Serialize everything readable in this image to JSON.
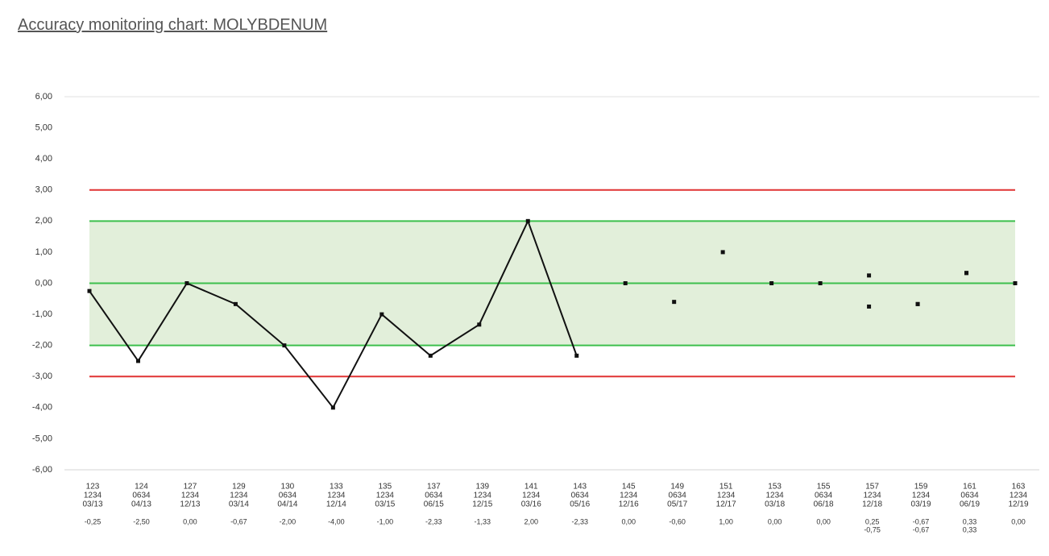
{
  "chart_data": {
    "type": "control",
    "title": "Accuracy monitoring chart: MOLYBDENUM",
    "categories": [
      [
        "123",
        "1234",
        "03/13"
      ],
      [
        "124",
        "0634",
        "04/13"
      ],
      [
        "127",
        "1234",
        "12/13"
      ],
      [
        "129",
        "1234",
        "03/14"
      ],
      [
        "130",
        "0634",
        "04/14"
      ],
      [
        "133",
        "1234",
        "12/14"
      ],
      [
        "135",
        "1234",
        "03/15"
      ],
      [
        "137",
        "0634",
        "06/15"
      ],
      [
        "139",
        "1234",
        "12/15"
      ],
      [
        "141",
        "1234",
        "03/16"
      ],
      [
        "143",
        "0634",
        "05/16"
      ],
      [
        "145",
        "1234",
        "12/16"
      ],
      [
        "149",
        "0634",
        "05/17"
      ],
      [
        "151",
        "1234",
        "12/17"
      ],
      [
        "153",
        "1234",
        "03/18"
      ],
      [
        "155",
        "0634",
        "06/18"
      ],
      [
        "157",
        "1234",
        "12/18"
      ],
      [
        "159",
        "1234",
        "03/19"
      ],
      [
        "161",
        "0634",
        "06/19"
      ],
      [
        "163",
        "1234",
        "12/19"
      ]
    ],
    "series": [
      {
        "style": "line",
        "color": "#111111",
        "values": [
          -0.25,
          -2.5,
          0,
          -0.67,
          -2,
          -4,
          -1,
          -2.33,
          -1.33,
          2,
          -2.33,
          null,
          null,
          null,
          null,
          null,
          null,
          null,
          null,
          null
        ],
        "value_labels": [
          "-0,25",
          "-2,50",
          "0,00",
          "-0,67",
          "-2,00",
          "-4,00",
          "-1,00",
          "-2,33",
          "-1,33",
          "2,00",
          "-2,33",
          null,
          null,
          null,
          null,
          null,
          null,
          null,
          null,
          null
        ]
      },
      {
        "style": "points",
        "color": "#111111",
        "values": [
          null,
          null,
          null,
          null,
          null,
          null,
          null,
          null,
          null,
          null,
          null,
          0,
          -0.6,
          1,
          0,
          0,
          0.25,
          -0.67,
          0.33,
          0
        ],
        "value_labels": [
          null,
          null,
          null,
          null,
          null,
          null,
          null,
          null,
          null,
          null,
          null,
          "0,00",
          "-0,60",
          "1,00",
          "0,00",
          "0,00",
          "0,25",
          "-0,67",
          "0,33",
          "0,00"
        ]
      },
      {
        "style": "points",
        "color": "#111111",
        "values": [
          null,
          null,
          null,
          null,
          null,
          null,
          null,
          null,
          null,
          null,
          null,
          null,
          null,
          null,
          null,
          null,
          -0.75,
          -0.67,
          0.33,
          null
        ],
        "value_labels": [
          null,
          null,
          null,
          null,
          null,
          null,
          null,
          null,
          null,
          null,
          null,
          null,
          null,
          null,
          null,
          null,
          "-0,75",
          "-0,67",
          "0,33",
          null
        ]
      }
    ],
    "ylim": [
      -6,
      6
    ],
    "yticks": [
      {
        "value": 6,
        "label": "6,00"
      },
      {
        "value": 5,
        "label": "5,00"
      },
      {
        "value": 4,
        "label": "4,00"
      },
      {
        "value": 3,
        "label": "3,00"
      },
      {
        "value": 2,
        "label": "2,00"
      },
      {
        "value": 1,
        "label": "1,00"
      },
      {
        "value": 0,
        "label": "0,00"
      },
      {
        "value": -1,
        "label": "-1,00"
      },
      {
        "value": -2,
        "label": "-2,00"
      },
      {
        "value": -3,
        "label": "-3,00"
      },
      {
        "value": -4,
        "label": "-4,00"
      },
      {
        "value": -5,
        "label": "-5,00"
      },
      {
        "value": -6,
        "label": "-6,00"
      }
    ],
    "control_limits": {
      "values": [
        -3,
        3
      ],
      "color": "#e03434"
    },
    "warning_limits": {
      "values": [
        -2,
        2
      ],
      "color": "#3cbf4c",
      "fill": "#e2efda"
    },
    "center_line": {
      "value": 0,
      "color": "#3cbf4c"
    }
  }
}
